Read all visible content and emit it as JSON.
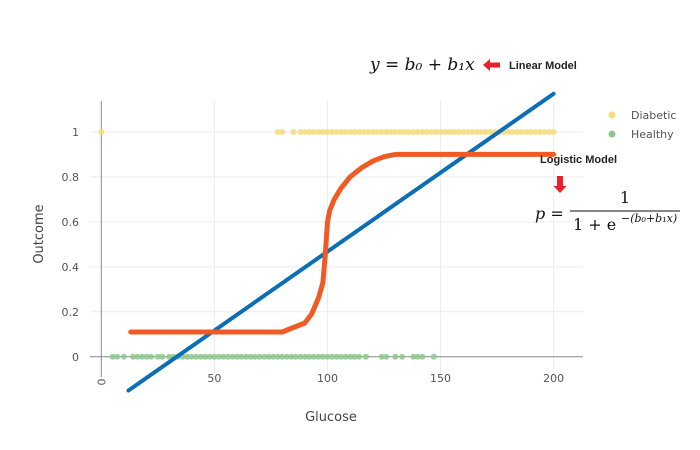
{
  "chart_data": {
    "type": "scatter",
    "xlabel": "Glucose",
    "ylabel": "Outcome",
    "xlim": [
      -5,
      213
    ],
    "ylim": [
      -0.09,
      1.16
    ],
    "x_ticks": [
      "0",
      "50",
      "100",
      "150",
      "200"
    ],
    "y_ticks": [
      "0",
      "0.2",
      "0.4",
      "0.6",
      "0.8",
      "1"
    ],
    "grid": true,
    "legend_position": "top-right",
    "series": [
      {
        "name": "Diabetic",
        "kind": "points",
        "color": "#f5dc7a",
        "y": 1,
        "x": [
          0,
          78,
          80,
          85,
          88,
          90,
          92,
          94,
          96,
          98,
          100,
          102,
          104,
          106,
          108,
          110,
          112,
          114,
          116,
          118,
          120,
          122,
          124,
          126,
          128,
          130,
          132,
          134,
          136,
          138,
          140,
          142,
          144,
          146,
          148,
          150,
          152,
          154,
          156,
          158,
          160,
          162,
          164,
          166,
          168,
          170,
          172,
          174,
          176,
          178,
          180,
          182,
          184,
          186,
          188,
          190,
          192,
          194,
          196,
          198,
          200
        ]
      },
      {
        "name": "Healthy",
        "kind": "points",
        "color": "#8cc98c",
        "y": 0,
        "x": [
          5,
          7,
          10,
          14,
          16,
          18,
          20,
          22,
          25,
          27,
          30,
          32,
          34,
          36,
          38,
          40,
          42,
          44,
          46,
          48,
          50,
          52,
          54,
          56,
          58,
          60,
          62,
          64,
          66,
          68,
          70,
          72,
          74,
          76,
          78,
          80,
          82,
          84,
          86,
          88,
          90,
          92,
          94,
          96,
          98,
          100,
          102,
          104,
          106,
          108,
          110,
          112,
          114,
          117,
          124,
          126,
          130,
          133,
          138,
          140,
          142,
          147
        ]
      },
      {
        "name": "Linear Model",
        "kind": "line",
        "color": "#0a6fb5",
        "x": [
          12,
          200
        ],
        "y": [
          -0.15,
          1.17
        ]
      },
      {
        "name": "Logistic Model",
        "kind": "curve",
        "color": "#f05a24",
        "x": [
          13,
          80,
          85,
          90,
          93,
          96,
          98,
          99,
          100,
          101,
          103,
          106,
          110,
          115,
          120,
          125,
          130,
          200
        ],
        "y": [
          0.11,
          0.11,
          0.13,
          0.15,
          0.19,
          0.26,
          0.33,
          0.45,
          0.6,
          0.65,
          0.7,
          0.75,
          0.8,
          0.84,
          0.87,
          0.89,
          0.9,
          0.9
        ]
      }
    ],
    "annotations": {
      "linear_formula": "y = b₀ + b₁x",
      "linear_label": "Linear Model",
      "logistic_label": "Logistic Model",
      "logistic_formula_lhs": "p =",
      "logistic_formula_numerator": "1",
      "logistic_formula_denominator": "1 + e",
      "logistic_formula_exponent": "−(b₀+b₁x)",
      "arrow_color": "#e8202a"
    }
  }
}
